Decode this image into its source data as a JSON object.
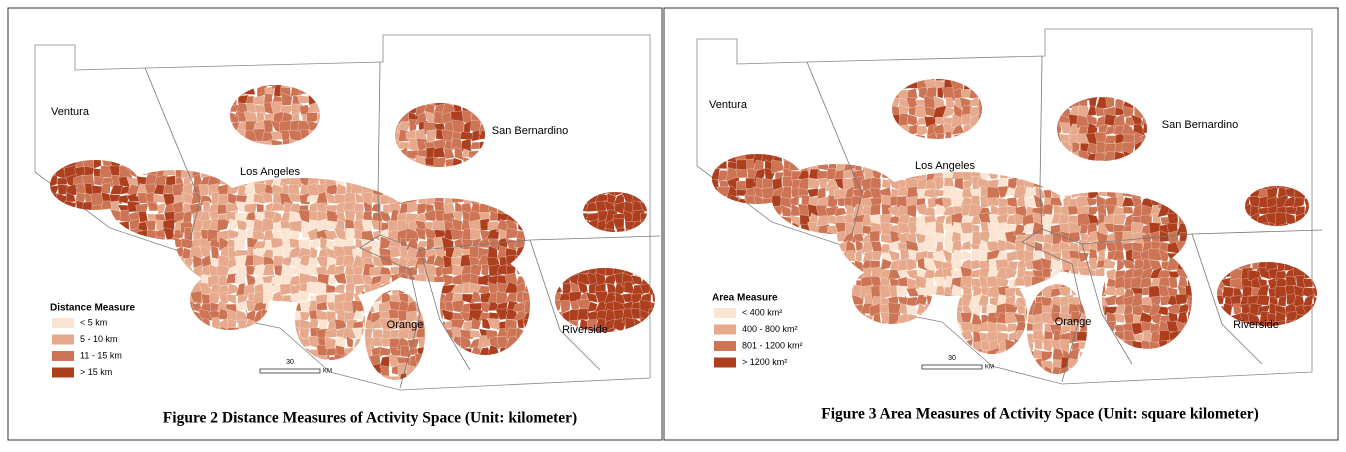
{
  "figures": [
    {
      "counties": [
        "Ventura",
        "Los Angeles",
        "San Bernardino",
        "Orange",
        "Riverside"
      ],
      "legend": {
        "title": "Distance Measure",
        "items": [
          {
            "label": "< 5 km",
            "color": "#fbe5d2"
          },
          {
            "label": "5 - 10 km",
            "color": "#e6a98b"
          },
          {
            "label": "11 - 15 km",
            "color": "#cd7455"
          },
          {
            "label": "> 15 km",
            "color": "#ad3f1e"
          }
        ]
      },
      "scale": {
        "label": "30",
        "unit": "KM"
      },
      "caption": "Figure 2 Distance Measures of Activity Space (Unit: kilometer)"
    },
    {
      "counties": [
        "Ventura",
        "Los Angeles",
        "San Bernardino",
        "Orange",
        "Riverside"
      ],
      "legend": {
        "title": "Area Measure",
        "items": [
          {
            "label": "< 400 km²",
            "color": "#fbe5d2"
          },
          {
            "label": "400 - 800 km²",
            "color": "#e6a98b"
          },
          {
            "label": "801 - 1200 km²",
            "color": "#cd7455"
          },
          {
            "label": "> 1200 km²",
            "color": "#ad3f1e"
          }
        ]
      },
      "scale": {
        "label": "30",
        "unit": "KM"
      },
      "caption": "Figure 3 Area Measures of Activity Space (Unit: square kilometer)"
    }
  ]
}
